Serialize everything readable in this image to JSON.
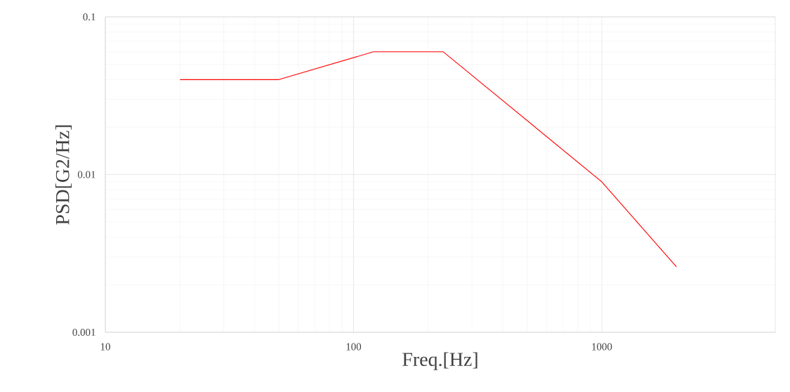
{
  "chart_data": {
    "type": "line",
    "xlabel": "Freq.[Hz]",
    "ylabel": "PSD[G2/Hz]",
    "log": "xy",
    "grid": true,
    "marker": "none",
    "line_style": "solid",
    "x": [
      20,
      50,
      120,
      230,
      1000,
      2000
    ],
    "series": [
      {
        "color": "#ff0000",
        "values": [
          0.04,
          0.04,
          0.06,
          0.06,
          0.009,
          0.0026
        ]
      }
    ],
    "xlim": [
      10,
      5000
    ],
    "ylim": [
      0.001,
      0.1
    ],
    "xticks": [
      10,
      100,
      1000
    ],
    "yticks": [
      0.001,
      0.01,
      0.1
    ]
  }
}
